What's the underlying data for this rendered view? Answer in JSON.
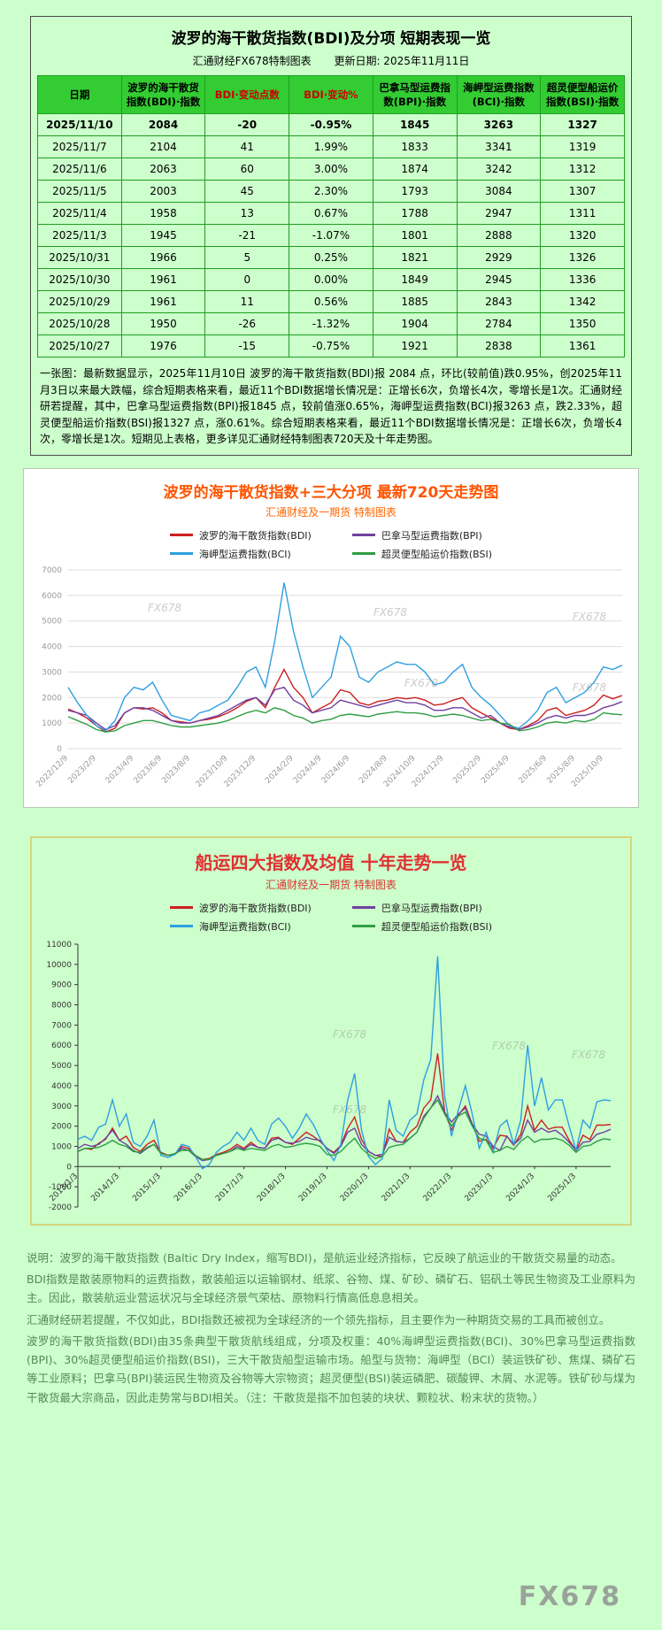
{
  "watermark": "FX678",
  "panel1": {
    "title": "波罗的海干散货指数(BDI)及分项  短期表现一览",
    "source": "汇通财经FX678特制图表",
    "updated": "更新日期: 2025年11月11日",
    "summary": "一张图：最新数据显示，2025年11月10日 波罗的海干散货指数(BDI)报 2084 点，环比(较前值)跌0.95%，创2025年11月3日以来最大跌幅，综合短期表格来看，最近11个BDI数据增长情况是：正增长6次，负增长4次，零增长是1次。汇通财经研若提醒，其中，巴拿马型运费指数(BPI)报1845 点，较前值涨0.65%，海岬型运费指数(BCI)报3263 点，跌2.33%，超灵便型船运价指数(BSI)报1327 点，涨0.61%。综合短期表格来看，最近11个BDI数据增长情况是：正增长6次，负增长4次，零增长是1次。短期见上表格，更多详见汇通财经特制图表720天及十年走势图。"
  },
  "chart_data": [
    {
      "type": "table",
      "columns": [
        "日期",
        "波罗的海干散货\n指数(BDI)·指数",
        "BDI·变动点数",
        "BDI·变动%",
        "巴拿马型运费指\n数(BPI)·指数",
        "海岬型运费指数\n(BCI)·指数",
        "超灵便型船运价\n指数(BSI)·指数"
      ],
      "red_header_indices": [
        2,
        3
      ],
      "rows": [
        [
          "2025/11/10",
          "2084",
          "-20",
          "-0.95%",
          "1845",
          "3263",
          "1327"
        ],
        [
          "2025/11/7",
          "2104",
          "41",
          "1.99%",
          "1833",
          "3341",
          "1319"
        ],
        [
          "2025/11/6",
          "2063",
          "60",
          "3.00%",
          "1874",
          "3242",
          "1312"
        ],
        [
          "2025/11/5",
          "2003",
          "45",
          "2.30%",
          "1793",
          "3084",
          "1307"
        ],
        [
          "2025/11/4",
          "1958",
          "13",
          "0.67%",
          "1788",
          "2947",
          "1311"
        ],
        [
          "2025/11/3",
          "1945",
          "-21",
          "-1.07%",
          "1801",
          "2888",
          "1320"
        ],
        [
          "2025/10/31",
          "1966",
          "5",
          "0.25%",
          "1821",
          "2929",
          "1326"
        ],
        [
          "2025/10/30",
          "1961",
          "0",
          "0.00%",
          "1849",
          "2945",
          "1336"
        ],
        [
          "2025/10/29",
          "1961",
          "11",
          "0.56%",
          "1885",
          "2843",
          "1342"
        ],
        [
          "2025/10/28",
          "1950",
          "-26",
          "-1.32%",
          "1904",
          "2784",
          "1350"
        ],
        [
          "2025/10/27",
          "1976",
          "-15",
          "-0.75%",
          "1921",
          "2838",
          "1361"
        ]
      ]
    },
    {
      "type": "line",
      "title": "波罗的海干散货指数+三大分项  最新720天走势图",
      "subtitle": "汇通财经及一期货  特制图表",
      "ylim": [
        0,
        7000
      ],
      "ystep": 1000,
      "grid": true,
      "grid_color": "#dddddd",
      "tick_color": "#9a9a9a",
      "axis_color": null,
      "xaxis_at_zero": false,
      "legend_position": "top",
      "xlabels": [
        "2022/12/9",
        "2023/2/9",
        "2023/4/9",
        "2023/6/9",
        "2023/8/9",
        "2023/10/9",
        "2023/12/9",
        "2024/2/9",
        "2024/4/9",
        "2024/6/9",
        "2024/8/9",
        "2024/10/9",
        "2024/12/9",
        "2025/2/9",
        "2025/4/9",
        "2025/6/9",
        "2025/8/9",
        "2025/10/9"
      ],
      "xlabel_indices": [
        0,
        3,
        7,
        10,
        13,
        17,
        20,
        24,
        27,
        30,
        34,
        37,
        40,
        44,
        47,
        51,
        54,
        57
      ],
      "series": [
        {
          "name": "波罗的海干散货指数(BDI)",
          "color": "#cc2020",
          "values": [
            1550,
            1400,
            1200,
            900,
            650,
            800,
            1400,
            1600,
            1550,
            1600,
            1400,
            1100,
            1050,
            1000,
            1100,
            1150,
            1250,
            1400,
            1600,
            1850,
            2000,
            1600,
            2400,
            3100,
            2400,
            2000,
            1400,
            1600,
            1800,
            2300,
            2200,
            1800,
            1700,
            1850,
            1900,
            2000,
            1950,
            2000,
            1900,
            1700,
            1750,
            1900,
            2000,
            1600,
            1400,
            1200,
            1000,
            800,
            750,
            900,
            1100,
            1500,
            1600,
            1300,
            1400,
            1500,
            1700,
            2100,
            1950,
            2084
          ]
        },
        {
          "name": "巴拿马型运费指数(BPI)",
          "color": "#7040a0",
          "values": [
            1500,
            1400,
            1300,
            1000,
            750,
            900,
            1400,
            1600,
            1600,
            1500,
            1300,
            1100,
            1000,
            1000,
            1100,
            1200,
            1300,
            1500,
            1700,
            1900,
            2000,
            1700,
            2300,
            2400,
            1900,
            1700,
            1400,
            1500,
            1600,
            1900,
            1800,
            1700,
            1600,
            1700,
            1800,
            1900,
            1800,
            1800,
            1700,
            1500,
            1500,
            1600,
            1600,
            1400,
            1200,
            1300,
            1000,
            850,
            750,
            850,
            1000,
            1200,
            1300,
            1200,
            1300,
            1300,
            1400,
            1600,
            1700,
            1845
          ]
        },
        {
          "name": "海岬型运费指数(BCI)",
          "color": "#2f9fe0",
          "values": [
            2400,
            1800,
            1300,
            900,
            700,
            1100,
            2000,
            2400,
            2300,
            2600,
            1900,
            1300,
            1200,
            1100,
            1400,
            1500,
            1700,
            1900,
            2400,
            3000,
            3200,
            2400,
            4200,
            6500,
            4600,
            3200,
            2000,
            2400,
            2800,
            4400,
            4000,
            2800,
            2600,
            3000,
            3200,
            3400,
            3300,
            3300,
            3000,
            2500,
            2600,
            3000,
            3300,
            2400,
            2000,
            1700,
            1300,
            900,
            800,
            1100,
            1500,
            2200,
            2400,
            1800,
            2000,
            2200,
            2600,
            3200,
            3100,
            3263
          ]
        },
        {
          "name": "超灵便型船运价指数(BSI)",
          "color": "#2e9e44",
          "values": [
            1250,
            1100,
            950,
            750,
            650,
            700,
            900,
            1000,
            1100,
            1100,
            1000,
            900,
            850,
            850,
            900,
            950,
            1000,
            1100,
            1250,
            1400,
            1500,
            1400,
            1600,
            1500,
            1300,
            1200,
            1000,
            1100,
            1150,
            1300,
            1350,
            1300,
            1250,
            1350,
            1400,
            1450,
            1400,
            1400,
            1350,
            1250,
            1300,
            1350,
            1300,
            1200,
            1100,
            1150,
            1000,
            950,
            700,
            750,
            850,
            1000,
            1050,
            1000,
            1100,
            1050,
            1150,
            1400,
            1350,
            1327
          ]
        }
      ]
    },
    {
      "type": "line",
      "title": "船运四大指数及均值 十年走势一览",
      "subtitle": "汇通财经及一期货 特制图表",
      "ylim": [
        -2000,
        11000
      ],
      "ystep": 1000,
      "grid": false,
      "grid_color": "#dddddd",
      "tick_color": "#333333",
      "axis_color": "#333333",
      "xaxis_at_zero": true,
      "legend_position": "top",
      "xlabels": [
        "2013/1/3",
        "2014/1/3",
        "2015/1/3",
        "2016/1/3",
        "2017/1/3",
        "2018/1/3",
        "2019/1/3",
        "2020/1/3",
        "2021/1/3",
        "2022/1/3",
        "2023/1/3",
        "2024/1/3",
        "2025/1/3"
      ],
      "xlabel_indices": [
        0,
        6,
        12,
        18,
        24,
        30,
        36,
        42,
        48,
        54,
        60,
        66,
        72
      ],
      "series": [
        {
          "name": "波罗的海干散货指数(BDI)",
          "color": "#cc2020",
          "values": [
            750,
            900,
            850,
            1150,
            1350,
            1900,
            1300,
            1500,
            950,
            750,
            1100,
            1300,
            700,
            560,
            600,
            1000,
            900,
            550,
            350,
            400,
            600,
            700,
            850,
            1100,
            900,
            1200,
            950,
            900,
            1400,
            1450,
            1200,
            1100,
            1400,
            1700,
            1500,
            1250,
            900,
            700,
            1050,
            1900,
            2450,
            1350,
            750,
            550,
            500,
            1850,
            1250,
            1200,
            1700,
            2000,
            2900,
            3300,
            5600,
            2700,
            1800,
            2550,
            3000,
            2100,
            1250,
            1350,
            900,
            1550,
            1500,
            1050,
            1600,
            3000,
            1800,
            2300,
            1850,
            1950,
            1950,
            1300,
            800,
            1550,
            1350,
            2050,
            2050,
            2084
          ]
        },
        {
          "name": "巴拿马型运费指数(BPI)",
          "color": "#7040a0",
          "values": [
            900,
            1100,
            1000,
            1100,
            1400,
            1800,
            1300,
            1100,
            800,
            650,
            900,
            1100,
            650,
            550,
            600,
            900,
            800,
            500,
            300,
            350,
            550,
            650,
            750,
            1000,
            850,
            1100,
            950,
            900,
            1300,
            1400,
            1200,
            1150,
            1250,
            1450,
            1350,
            1300,
            900,
            650,
            1000,
            1700,
            1900,
            1100,
            750,
            550,
            600,
            1450,
            1250,
            1200,
            1400,
            1700,
            2500,
            2900,
            3500,
            2700,
            2200,
            2600,
            2900,
            2100,
            1600,
            1500,
            1000,
            800,
            1500,
            1100,
            1400,
            2300,
            1700,
            1900,
            1700,
            1800,
            1550,
            1200,
            800,
            1200,
            1250,
            1600,
            1700,
            1845
          ]
        },
        {
          "name": "海岬型运费指数(BCI)",
          "color": "#2f9fe0",
          "values": [
            1350,
            1500,
            1300,
            1950,
            2100,
            3300,
            2000,
            2600,
            1200,
            1000,
            1500,
            2300,
            550,
            450,
            600,
            1100,
            1000,
            500,
            -100,
            100,
            700,
            1000,
            1200,
            1700,
            1300,
            1900,
            1300,
            1100,
            2100,
            2400,
            2000,
            1400,
            1900,
            2600,
            2100,
            1400,
            800,
            300,
            1100,
            3300,
            4600,
            1800,
            500,
            100,
            400,
            3300,
            1800,
            1500,
            2300,
            2600,
            4300,
            5300,
            10400,
            3500,
            1500,
            2800,
            4000,
            2600,
            900,
            1700,
            700,
            2000,
            2300,
            1100,
            2300,
            6000,
            3000,
            4400,
            2800,
            3300,
            3300,
            2000,
            800,
            2300,
            1900,
            3200,
            3300,
            3263
          ]
        },
        {
          "name": "超灵便型船运价指数(BSI)",
          "color": "#2e9e44",
          "values": [
            750,
            900,
            900,
            950,
            1100,
            1300,
            1100,
            1000,
            750,
            700,
            950,
            1100,
            650,
            550,
            650,
            800,
            800,
            550,
            350,
            350,
            550,
            650,
            750,
            900,
            800,
            900,
            850,
            800,
            1000,
            1100,
            950,
            1000,
            1100,
            1150,
            1100,
            1000,
            600,
            550,
            750,
            1100,
            1400,
            900,
            600,
            400,
            500,
            950,
            1050,
            1100,
            1400,
            1700,
            2400,
            2900,
            3300,
            2600,
            2000,
            2500,
            2700,
            2000,
            1400,
            1300,
            700,
            800,
            1000,
            850,
            1250,
            1500,
            1200,
            1350,
            1350,
            1400,
            1300,
            1050,
            700,
            1000,
            1050,
            1250,
            1380,
            1327
          ]
        }
      ]
    }
  ],
  "footer": {
    "paragraphs": [
      "说明：波罗的海干散货指数 (Baltic Dry Index，缩写BDI)，是航运业经济指标，它反映了航运业的干散货交易量的动态。",
      "BDI指数是散装原物料的运费指数，散装船运以运输钢材、纸浆、谷物、煤、矿砂、磷矿石、铝矾土等民生物资及工业原料为主。因此，散装航运业营运状况与全球经济景气荣枯、原物料行情高低息息相关。",
      "汇通财经研若提醒，不仅如此，BDI指数还被视为全球经济的一个领先指标，且主要作为一种期货交易的工具而被创立。",
      "波罗的海干散货指数(BDI)由35条典型干散货航线组成，分项及权重：40%海岬型运费指数(BCI)、30%巴拿马型运费指数(BPI)、30%超灵便型船运价指数(BSI)，三大干散货船型运输市场。船型与货物：海岬型（BCI）装运铁矿砂、焦煤、磷矿石等工业原料；巴拿马(BPI)装运民生物资及谷物等大宗物资；超灵便型(BSI)装运磷肥、碳酸钾、木屑、水泥等。铁矿砂与煤为干散货最大宗商品，因此走势常与BDI相关。（注：干散货是指不加包装的块状、颗粒状、粉末状的货物。）"
    ]
  }
}
